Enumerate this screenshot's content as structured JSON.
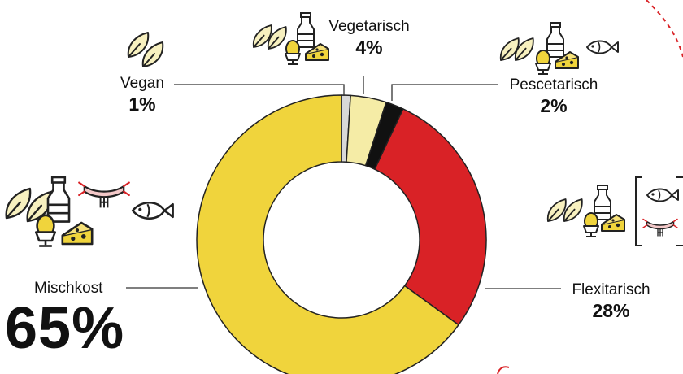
{
  "chart_data": {
    "type": "pie",
    "title": "",
    "slices": [
      {
        "label": "Vegan",
        "value": 1,
        "value_label": "1%",
        "color": "#d8d8d8"
      },
      {
        "label": "Vegetarisch",
        "value": 4,
        "value_label": "4%",
        "color": "#f5eca6"
      },
      {
        "label": "Pescetarisch",
        "value": 2,
        "value_label": "2%",
        "color": "#111111"
      },
      {
        "label": "Flexitarisch",
        "value": 28,
        "value_label": "28%",
        "color": "#d92226"
      },
      {
        "label": "Mischkost",
        "value": 65,
        "value_label": "65%",
        "color": "#f0d43c"
      }
    ],
    "donut": true,
    "start_angle_deg": 0,
    "legend": "none"
  },
  "colors": {
    "accent_red": "#d92226",
    "accent_yellow": "#f0d43c",
    "icon_leaf": "#f7f0bf",
    "icon_stroke": "#222222"
  },
  "icons": {
    "vegan": [
      "leaf-icon",
      "leaf-icon"
    ],
    "vegetarisch": [
      "leaf-icon",
      "leaf-icon",
      "milk-bottle-icon",
      "egg-icon",
      "cheese-icon"
    ],
    "pescetarisch": [
      "leaf-icon",
      "leaf-icon",
      "milk-bottle-icon",
      "egg-icon",
      "cheese-icon",
      "fish-icon"
    ],
    "flexitarisch": [
      "leaf-icon",
      "leaf-icon",
      "milk-bottle-icon",
      "egg-icon",
      "cheese-icon",
      "fish-icon",
      "sausage-icon"
    ],
    "mischkost": [
      "leaf-icon",
      "leaf-icon",
      "milk-bottle-icon",
      "egg-icon",
      "cheese-icon",
      "sausage-icon",
      "fish-icon"
    ]
  }
}
